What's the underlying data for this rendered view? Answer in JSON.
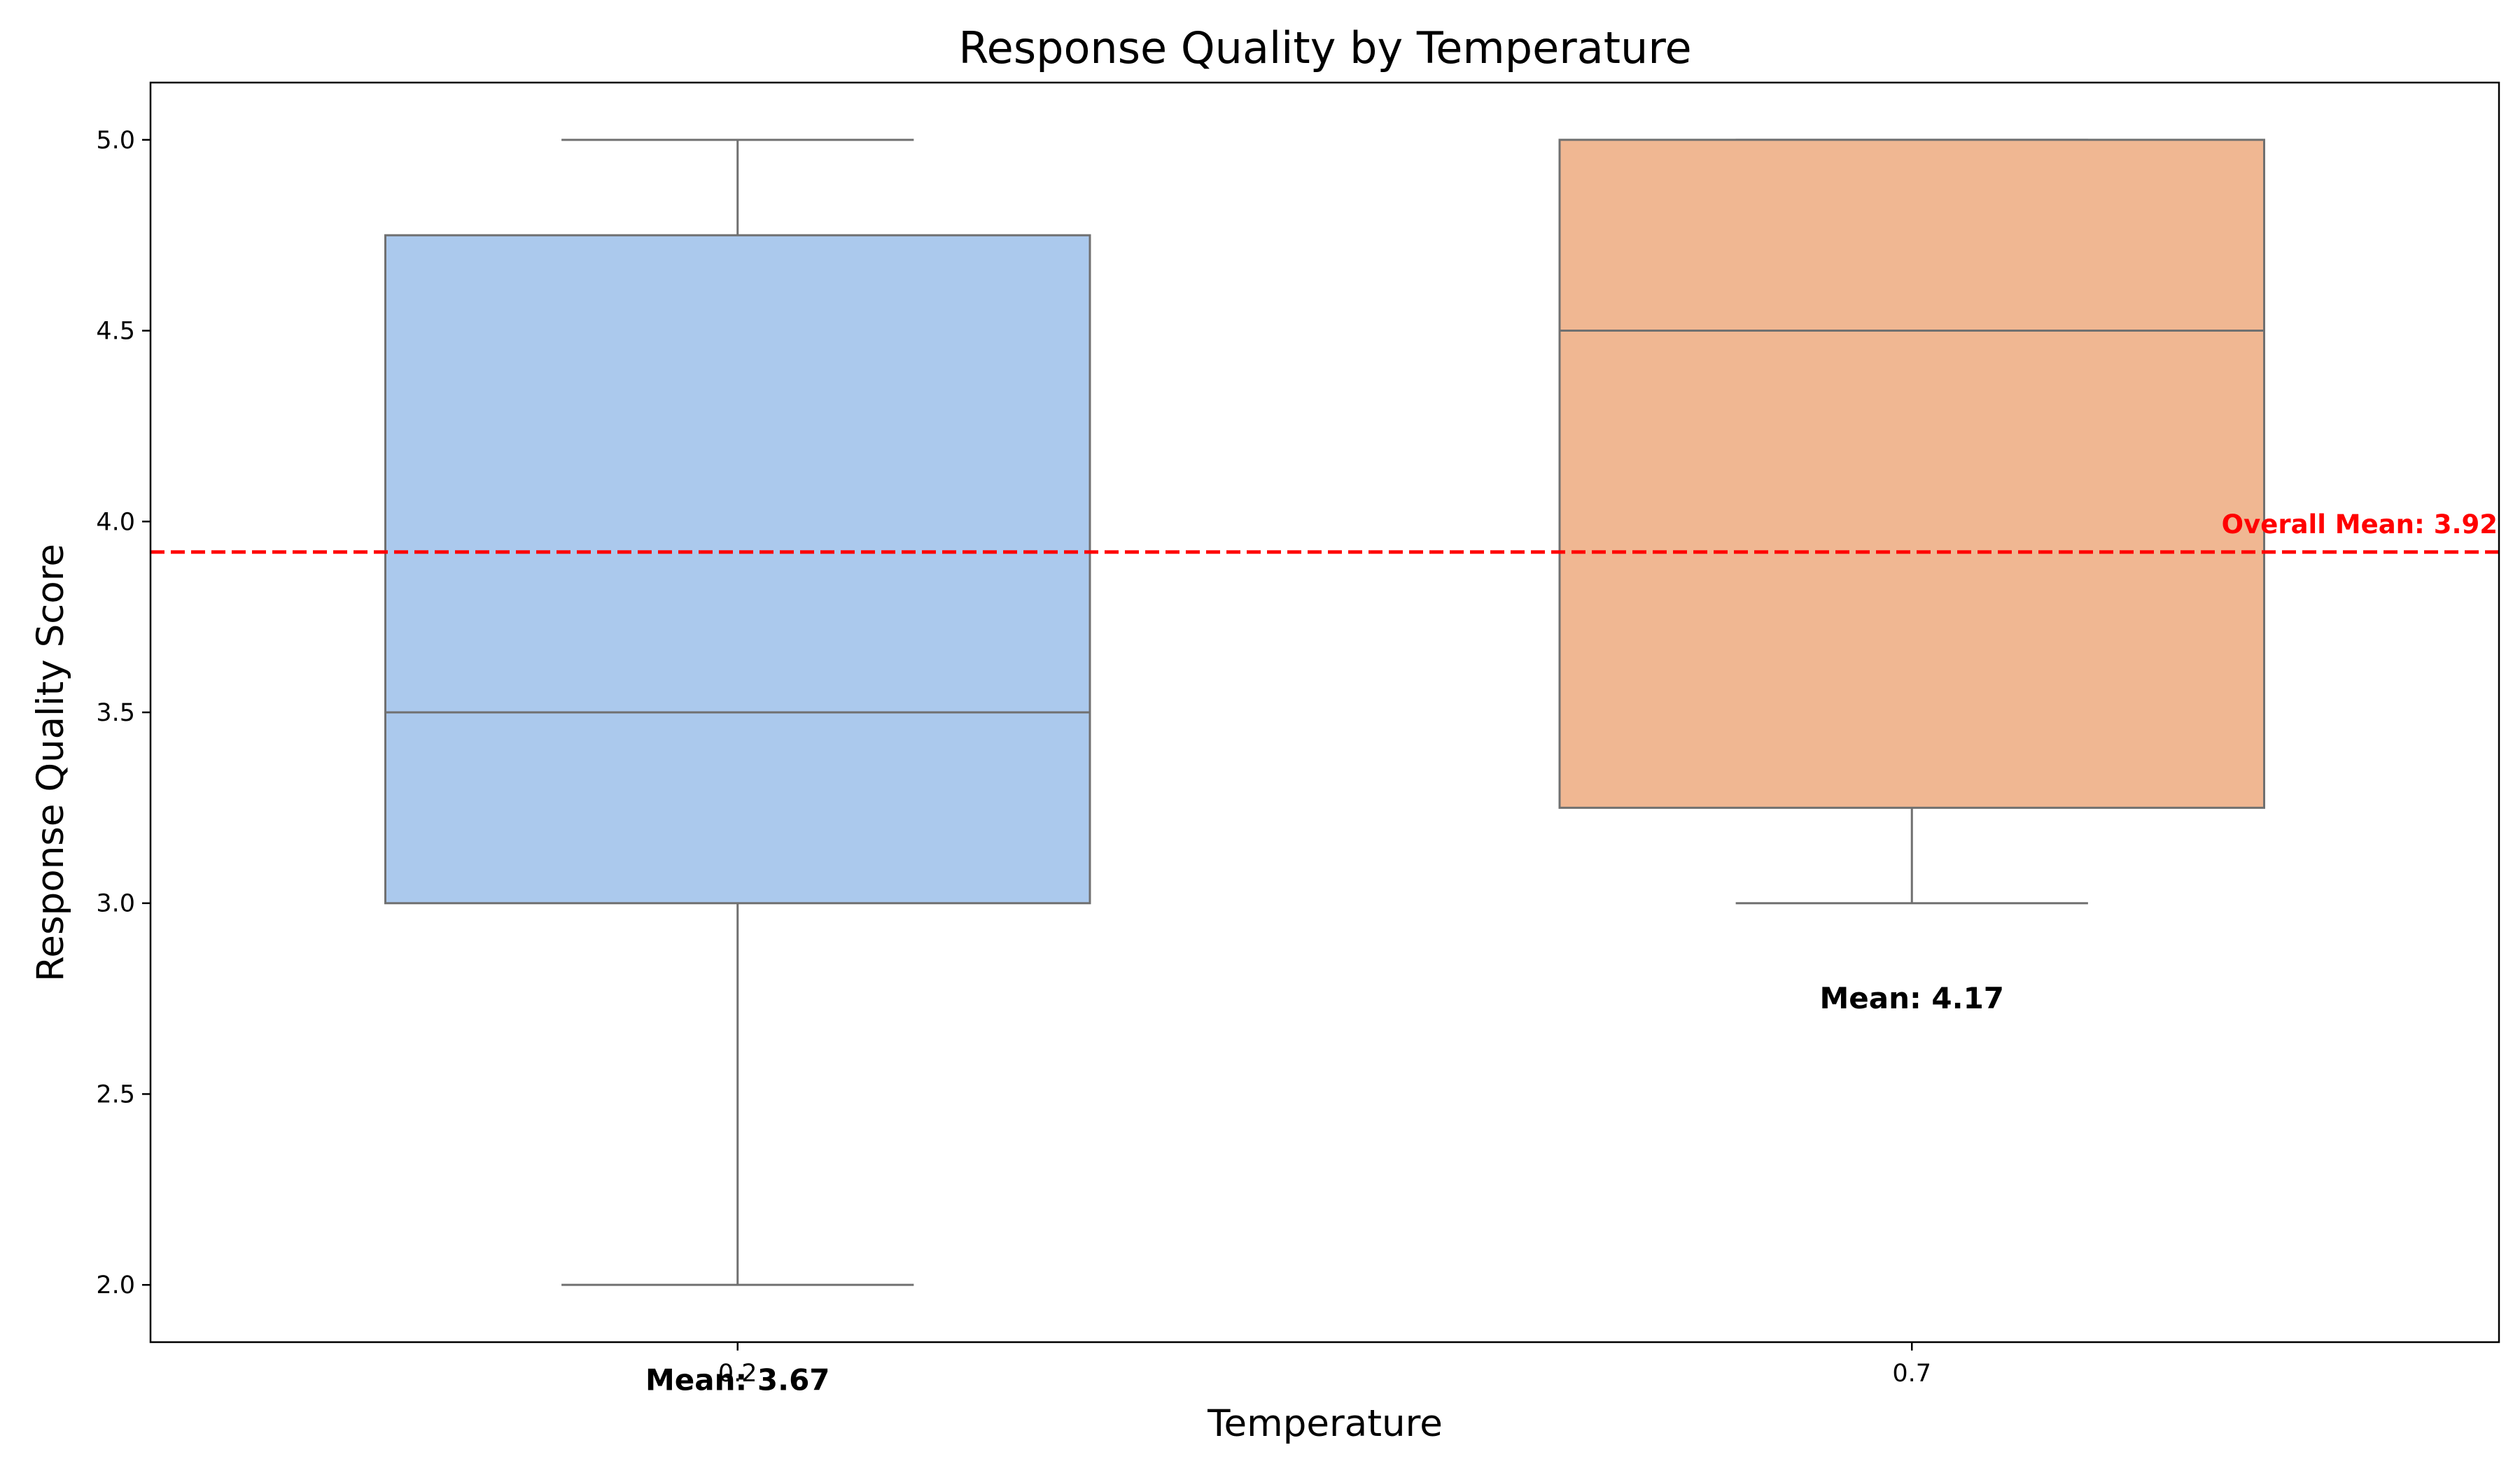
{
  "chart_data": {
    "type": "box",
    "title": "Response Quality by Temperature",
    "xlabel": "Temperature",
    "ylabel": "Response Quality Score",
    "ylim": [
      1.85,
      5.15
    ],
    "yticks": [
      "2.0",
      "2.5",
      "3.0",
      "3.5",
      "4.0",
      "4.5",
      "5.0"
    ],
    "grid": false,
    "categories": [
      "0.2",
      "0.7"
    ],
    "boxes": [
      {
        "category": "0.2",
        "whisker_low": 2.0,
        "q1": 3.0,
        "median": 3.5,
        "q3": 4.75,
        "whisker_high": 5.0,
        "color": "#abc9ed",
        "mean_label": "Mean: 3.67",
        "mean_label_y": 1.75
      },
      {
        "category": "0.7",
        "whisker_low": 3.0,
        "q1": 3.25,
        "median": 4.5,
        "q3": 5.0,
        "whisker_high": 5.0,
        "color": "#f0b792",
        "mean_label": "Mean: 4.17",
        "mean_label_y": 2.75
      }
    ],
    "reference_line": {
      "value": 3.92,
      "label": "Overall Mean: 3.92",
      "color": "#ff0000",
      "style": "dashed"
    },
    "box_edge_color": "#707070"
  }
}
